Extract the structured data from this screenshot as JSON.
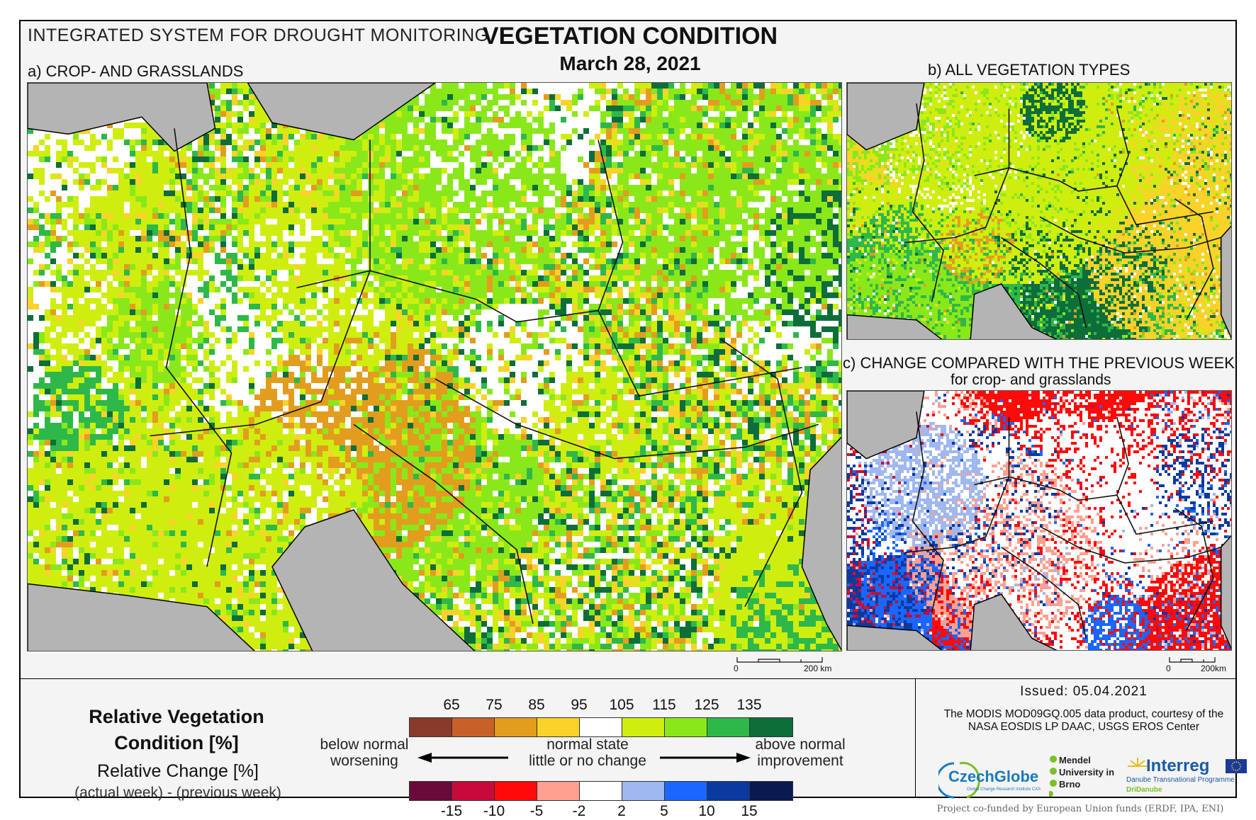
{
  "header": {
    "system_title": "INTEGRATED SYSTEM FOR DROUGHT MONITORING",
    "main_title": "VEGETATION CONDITION",
    "date": "March 28, 2021"
  },
  "panels": {
    "a_label": "a) CROP- AND GRASSLANDS",
    "b_label": "b) ALL VEGETATION TYPES",
    "c_label": "c) CHANGE COMPARED WITH THE PREVIOUS WEEK",
    "c_sublabel": "for crop- and grasslands"
  },
  "scalebars": {
    "a": {
      "start": "0",
      "end": "200 km"
    },
    "b": {
      "start": "0",
      "end": "200km"
    }
  },
  "legend": {
    "rvc_title": "Relative Vegetation Condition [%]",
    "rc_title": "Relative Change [%]",
    "rc_formula": "(actual week) - (previous week)",
    "rvc_ticks": [
      "65",
      "75",
      "85",
      "95",
      "105",
      "115",
      "125",
      "135"
    ],
    "rvc_colors": [
      "#8a3a2a",
      "#c8602a",
      "#e39d1e",
      "#fad22a",
      "#ffffff",
      "#cfee10",
      "#8ae81a",
      "#2eb84a",
      "#0e6e3a"
    ],
    "rc_ticks": [
      "-15",
      "-10",
      "-5",
      "-2",
      "2",
      "5",
      "10",
      "15"
    ],
    "rc_colors": [
      "#6a0a3a",
      "#c80a3a",
      "#ff0a0a",
      "#ffa090",
      "#ffffff",
      "#a0b8f0",
      "#1a66ff",
      "#0a3aa0",
      "#0a1a50"
    ],
    "below_normal": "below normal",
    "worsening": "worsening",
    "normal_state": "normal state",
    "little_change": "little or no change",
    "above_normal": "above normal",
    "improvement": "improvement"
  },
  "footer": {
    "issued": "Issued: 05.04.2021",
    "credit": "The MODIS MOD09GQ.005 data product, courtesy of the NASA EOSDIS LP DAAC, USGS EROS Center",
    "logo_czechglobe": "CzechGlobe",
    "logo_czechglobe_sub": "Global Change Research Institute CAS",
    "logo_mendel": "Mendel University in Brno",
    "logo_interreg": "Interreg",
    "logo_interreg_sub": "Danube Transnational Programme",
    "logo_interreg_sub2": "DriDanube",
    "cofunded": "Project co-funded by European Union funds (ERDF, IPA, ENI)"
  }
}
